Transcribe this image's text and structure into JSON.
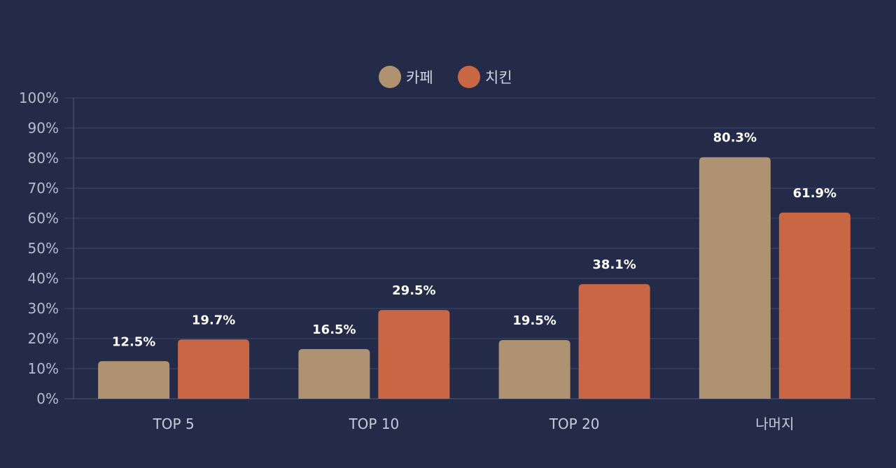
{
  "chart_data": {
    "type": "bar",
    "categories": [
      "TOP 5",
      "TOP 10",
      "TOP 20",
      "나머지"
    ],
    "series": [
      {
        "name": "카페",
        "values": [
          12.5,
          16.5,
          19.5,
          80.3
        ],
        "color": "#ae9272"
      },
      {
        "name": "치킨",
        "values": [
          19.7,
          29.5,
          38.1,
          61.9
        ],
        "color": "#c96644"
      }
    ],
    "value_labels": [
      [
        "12.5%",
        "16.5%",
        "19.5%",
        "80.3%"
      ],
      [
        "19.7%",
        "29.5%",
        "38.1%",
        "61.9%"
      ]
    ],
    "y_ticks": [
      "0%",
      "10%",
      "20%",
      "30%",
      "40%",
      "50%",
      "60%",
      "70%",
      "80%",
      "90%",
      "100%"
    ],
    "ylim": [
      0,
      100
    ],
    "grid": true,
    "legend_position": "top-center",
    "title": "",
    "xlabel": "",
    "ylabel": ""
  }
}
